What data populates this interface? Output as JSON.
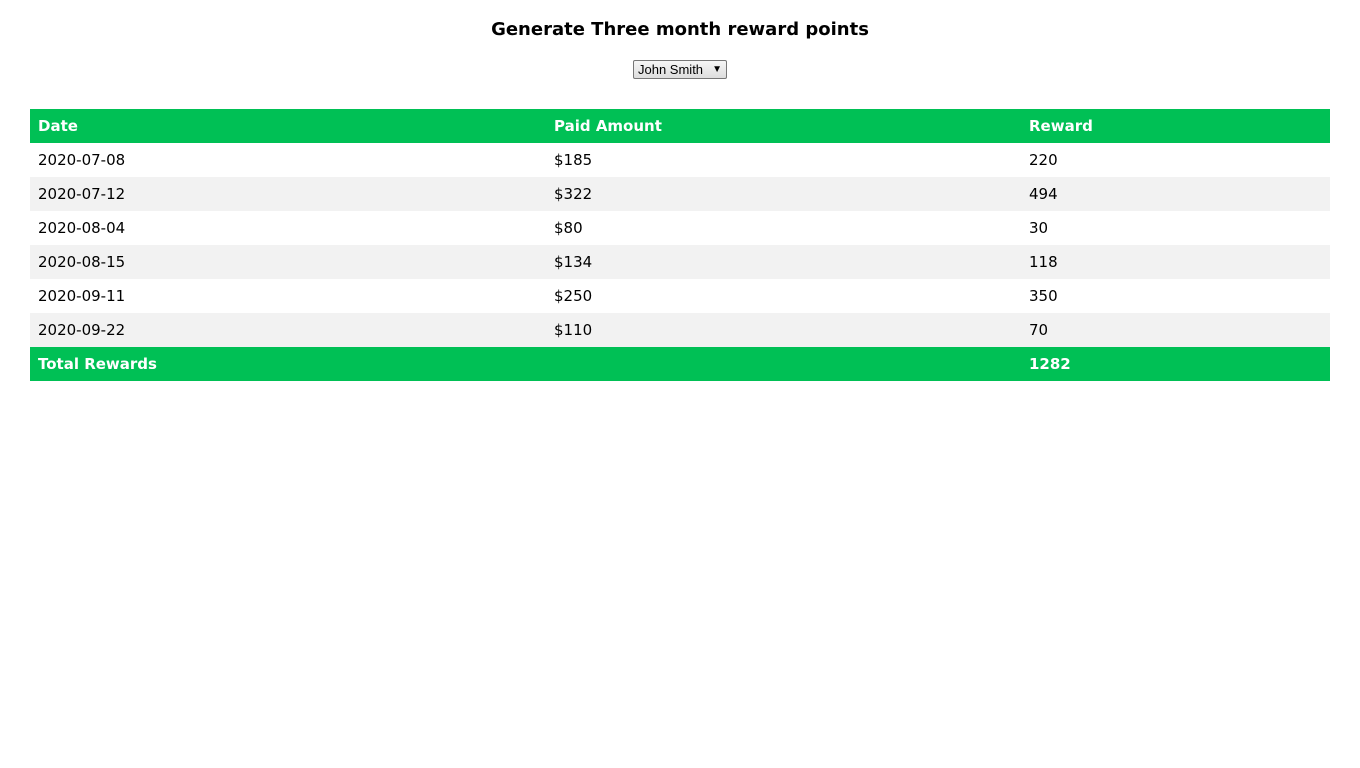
{
  "page": {
    "title": "Generate Three month reward points"
  },
  "customer_select": {
    "selected": "John Smith",
    "arrow_icon": "triangle-down-icon"
  },
  "table": {
    "headers": {
      "date": "Date",
      "amount": "Paid Amount",
      "reward": "Reward"
    },
    "rows": [
      {
        "date": "2020-07-08",
        "amount": "$185",
        "reward": "220"
      },
      {
        "date": "2020-07-12",
        "amount": "$322",
        "reward": "494"
      },
      {
        "date": "2020-08-04",
        "amount": "$80",
        "reward": "30"
      },
      {
        "date": "2020-08-15",
        "amount": "$134",
        "reward": "118"
      },
      {
        "date": "2020-09-11",
        "amount": "$250",
        "reward": "350"
      },
      {
        "date": "2020-09-22",
        "amount": "$110",
        "reward": "70"
      }
    ],
    "footer": {
      "label": "Total Rewards",
      "total": "1282"
    }
  },
  "colors": {
    "accent": "#00c055",
    "stripe": "#f2f2f2"
  }
}
